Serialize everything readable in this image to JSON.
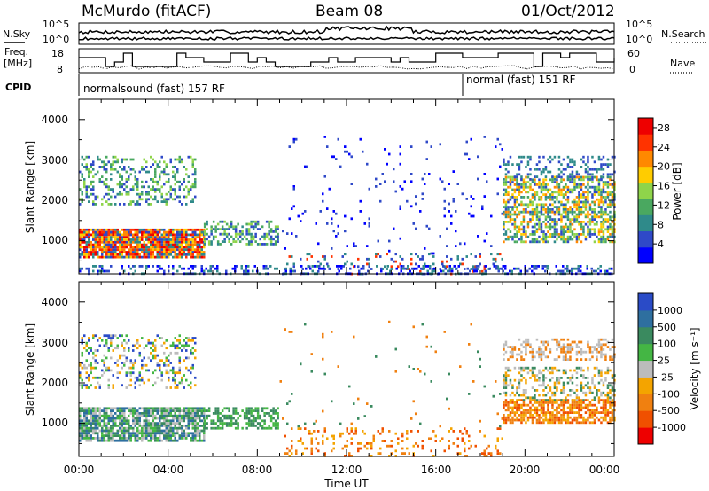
{
  "header": {
    "station": "McMurdo (fitACF)",
    "beam": "Beam 08",
    "date": "01/Oct/2012"
  },
  "strips": {
    "nsky_label": "N.Sky",
    "nsky_ticks": [
      "10^5",
      "10^0"
    ],
    "nsearch_label": "N.Search",
    "nsearch_ticks": [
      "10^5",
      "10^0"
    ],
    "freq_label_line1": "Freq.",
    "freq_label_line2": "[MHz]",
    "freq_ticks": [
      "18",
      "8"
    ],
    "nave_label": "Nave",
    "nave_ticks": [
      "60",
      "0"
    ],
    "cpid_label": "CPID",
    "cpid_segments": [
      {
        "text": "normalsound (fast) 157 RF",
        "start_hour": 0
      },
      {
        "text": "normal (fast) 151 RF",
        "start_hour": 17.3
      }
    ]
  },
  "colors": {
    "power": [
      "#0000ff",
      "#2f49c8",
      "#2f8a8a",
      "#4aa860",
      "#8fd44a",
      "#ffcc00",
      "#ff8800",
      "#ff3300",
      "#ee0000"
    ],
    "velocity": [
      "#2a4bc7",
      "#2e6f9f",
      "#3a8a5f",
      "#44b644",
      "#bcbcbc",
      "#f4a400",
      "#f08010",
      "#f05000",
      "#ee0000"
    ],
    "ground_scatter": "#888888"
  },
  "chart_data": [
    {
      "type": "heatmap",
      "panel": "power",
      "ylabel": "Slant Range [km]",
      "ylim": [
        180,
        4500
      ],
      "y_ticks": [
        "1000",
        "2000",
        "3000",
        "4000"
      ],
      "xlim": [
        0,
        24
      ],
      "x_tick_labels": [
        "00:00",
        "04:00",
        "08:00",
        "12:00",
        "16:00",
        "20:00",
        "00:00"
      ],
      "colorbar_label": "Power [dB]",
      "colorbar_ticks": [
        "4",
        "8",
        "12",
        "16",
        "20",
        "24",
        "28"
      ],
      "colorbar_range": [
        0,
        30
      ]
    },
    {
      "type": "heatmap",
      "panel": "velocity",
      "ylabel": "Slant Range [km]",
      "ylim": [
        180,
        4500
      ],
      "y_ticks": [
        "1000",
        "2000",
        "3000",
        "4000"
      ],
      "xlabel": "Time UT",
      "xlim": [
        0,
        24
      ],
      "x_tick_labels": [
        "00:00",
        "04:00",
        "08:00",
        "12:00",
        "16:00",
        "20:00",
        "00:00"
      ],
      "colorbar_label": "Velocity [m s⁻¹]",
      "colorbar_ticks": [
        "1000",
        "500",
        "100",
        "25",
        "-25",
        "-100",
        "-500",
        "-1000"
      ]
    }
  ]
}
